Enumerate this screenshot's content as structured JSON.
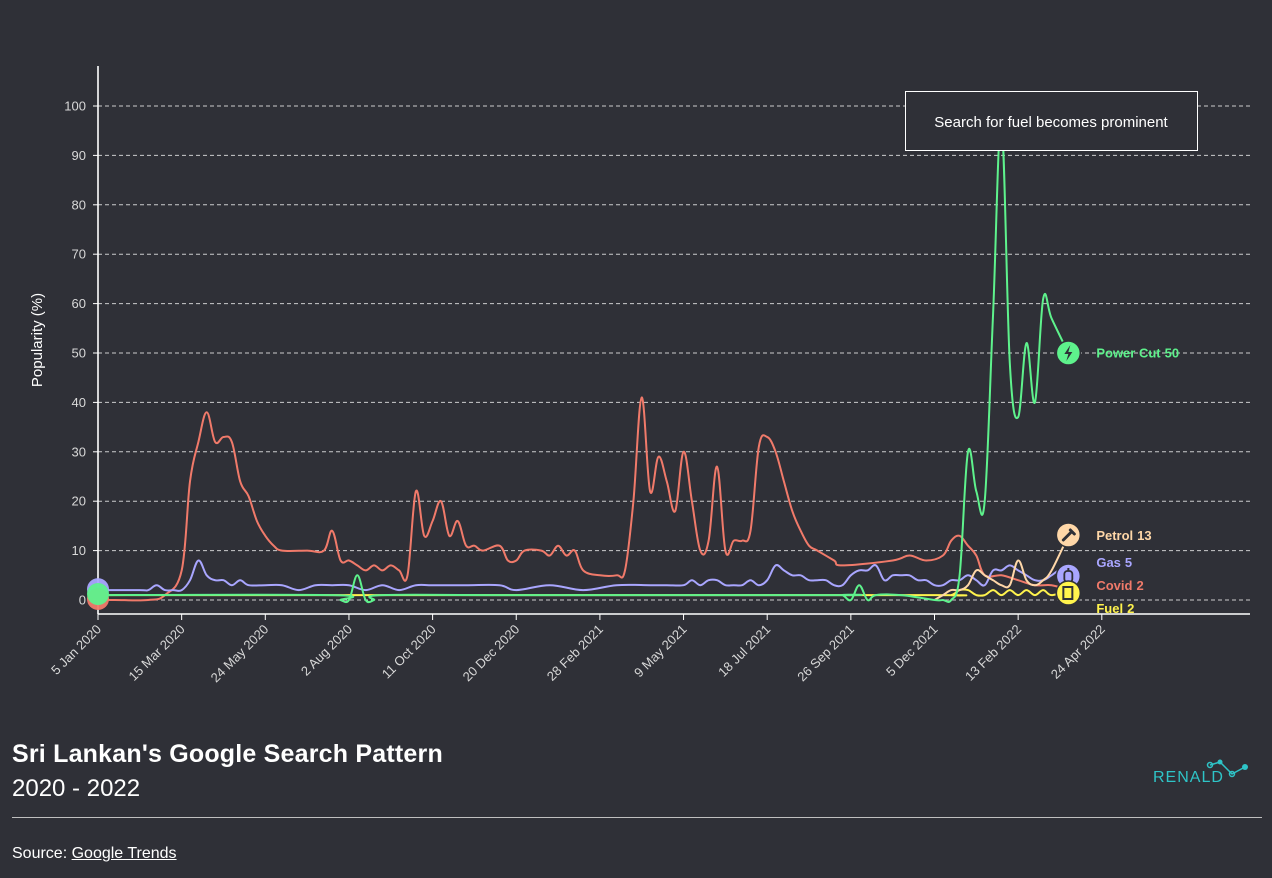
{
  "footer": {
    "title": "Sri Lankan's Google Search Pattern",
    "subtitle": "2020 - 2022",
    "source_prefix": "Source: ",
    "source_link": "Google Trends",
    "logo_text": "RENALD"
  },
  "colors": {
    "background": "#2f3037",
    "covid": "#f07a6a",
    "gas": "#a9a6ff",
    "power_cut": "#5ef28c",
    "petrol": "#ffd7a8",
    "fuel": "#fff34d",
    "logo": "#2ec4c7"
  },
  "chart_data": {
    "type": "line",
    "ylabel": "Popularity (%)",
    "xlabel": "",
    "ylim": [
      0,
      100
    ],
    "yticks": [
      0,
      10,
      20,
      30,
      40,
      50,
      60,
      70,
      80,
      90,
      100
    ],
    "grid": true,
    "x_tick_labels": [
      "5 Jan 2020",
      "15 Mar 2020",
      "24 May 2020",
      "2 Aug 2020",
      "11 Oct 2020",
      "20 Dec 2020",
      "28 Feb 2021",
      "9 May 2021",
      "18 Jul 2021",
      "26 Sep 2021",
      "5 Dec 2021",
      "13 Feb 2022",
      "24 Apr 2022"
    ],
    "annotation": "Search for fuel becomes prominent",
    "series": [
      {
        "name": "Covid",
        "end_value": 2,
        "icon": "virus-icon",
        "points": [
          [
            0,
            0
          ],
          [
            2,
            0
          ],
          [
            6,
            0
          ],
          [
            8,
            1
          ],
          [
            10,
            6
          ],
          [
            11,
            24
          ],
          [
            12,
            32
          ],
          [
            13,
            38
          ],
          [
            14,
            32
          ],
          [
            15,
            33
          ],
          [
            16,
            32
          ],
          [
            17,
            24
          ],
          [
            18,
            21
          ],
          [
            19,
            16
          ],
          [
            20,
            13
          ],
          [
            21,
            11
          ],
          [
            22,
            10
          ],
          [
            25,
            10
          ],
          [
            27,
            10
          ],
          [
            28,
            14
          ],
          [
            29,
            8
          ],
          [
            30,
            8
          ],
          [
            31,
            7
          ],
          [
            32,
            6
          ],
          [
            33,
            7
          ],
          [
            34,
            6
          ],
          [
            35,
            7
          ],
          [
            36,
            6
          ],
          [
            37,
            5
          ],
          [
            38,
            22
          ],
          [
            39,
            13
          ],
          [
            40,
            16
          ],
          [
            41,
            20
          ],
          [
            42,
            13
          ],
          [
            43,
            16
          ],
          [
            44,
            11
          ],
          [
            45,
            11
          ],
          [
            46,
            10
          ],
          [
            48,
            11
          ],
          [
            49,
            8
          ],
          [
            50,
            8
          ],
          [
            51,
            10
          ],
          [
            53,
            10
          ],
          [
            54,
            9
          ],
          [
            55,
            11
          ],
          [
            56,
            9
          ],
          [
            57,
            10
          ],
          [
            58,
            6
          ],
          [
            60,
            5
          ],
          [
            62,
            5
          ],
          [
            63,
            6
          ],
          [
            64,
            20
          ],
          [
            65,
            41
          ],
          [
            66,
            22
          ],
          [
            67,
            29
          ],
          [
            68,
            24
          ],
          [
            69,
            18
          ],
          [
            70,
            30
          ],
          [
            71,
            20
          ],
          [
            72,
            10
          ],
          [
            73,
            12
          ],
          [
            74,
            27
          ],
          [
            75,
            10
          ],
          [
            76,
            12
          ],
          [
            77,
            12
          ],
          [
            78,
            14
          ],
          [
            79,
            31
          ],
          [
            80,
            33
          ],
          [
            81,
            30
          ],
          [
            82,
            24
          ],
          [
            83,
            18
          ],
          [
            84,
            14
          ],
          [
            85,
            11
          ],
          [
            86,
            10
          ],
          [
            88,
            8
          ],
          [
            89,
            7
          ],
          [
            95,
            8
          ],
          [
            97,
            9
          ],
          [
            99,
            8
          ],
          [
            101,
            9
          ],
          [
            102,
            12
          ],
          [
            103,
            13
          ],
          [
            104,
            11
          ],
          [
            105,
            9
          ],
          [
            106,
            5
          ],
          [
            108,
            5
          ],
          [
            110,
            4
          ],
          [
            112,
            3
          ],
          [
            114,
            3
          ],
          [
            116,
            2
          ]
        ]
      },
      {
        "name": "Gas",
        "end_value": 5,
        "icon": "gas-cylinder-icon",
        "points": [
          [
            0,
            2
          ],
          [
            5,
            2
          ],
          [
            6,
            2
          ],
          [
            7,
            3
          ],
          [
            8,
            2
          ],
          [
            9,
            2
          ],
          [
            10,
            2
          ],
          [
            11,
            4
          ],
          [
            12,
            8
          ],
          [
            13,
            5
          ],
          [
            14,
            4
          ],
          [
            15,
            4
          ],
          [
            16,
            3
          ],
          [
            17,
            4
          ],
          [
            18,
            3
          ],
          [
            20,
            3
          ],
          [
            22,
            3
          ],
          [
            24,
            2
          ],
          [
            26,
            3
          ],
          [
            28,
            3
          ],
          [
            30,
            3
          ],
          [
            32,
            2
          ],
          [
            34,
            3
          ],
          [
            36,
            2
          ],
          [
            38,
            3
          ],
          [
            40,
            3
          ],
          [
            44,
            3
          ],
          [
            48,
            3
          ],
          [
            50,
            2
          ],
          [
            54,
            3
          ],
          [
            58,
            2
          ],
          [
            62,
            3
          ],
          [
            66,
            3
          ],
          [
            68,
            3
          ],
          [
            70,
            3
          ],
          [
            71,
            4
          ],
          [
            72,
            3
          ],
          [
            73,
            4
          ],
          [
            74,
            4
          ],
          [
            75,
            3
          ],
          [
            76,
            3
          ],
          [
            77,
            3
          ],
          [
            78,
            4
          ],
          [
            79,
            3
          ],
          [
            80,
            4
          ],
          [
            81,
            7
          ],
          [
            82,
            6
          ],
          [
            83,
            5
          ],
          [
            84,
            5
          ],
          [
            85,
            4
          ],
          [
            86,
            4
          ],
          [
            87,
            4
          ],
          [
            88,
            3
          ],
          [
            89,
            3
          ],
          [
            90,
            5
          ],
          [
            91,
            6
          ],
          [
            92,
            6
          ],
          [
            93,
            7
          ],
          [
            94,
            4
          ],
          [
            95,
            5
          ],
          [
            96,
            5
          ],
          [
            97,
            5
          ],
          [
            98,
            4
          ],
          [
            99,
            4
          ],
          [
            100,
            3
          ],
          [
            101,
            3
          ],
          [
            102,
            4
          ],
          [
            103,
            4
          ],
          [
            104,
            5
          ],
          [
            105,
            4
          ],
          [
            106,
            3
          ],
          [
            107,
            6
          ],
          [
            108,
            6
          ],
          [
            109,
            7
          ],
          [
            110,
            6
          ],
          [
            111,
            5
          ],
          [
            112,
            4
          ],
          [
            113,
            4
          ],
          [
            114,
            5
          ],
          [
            115,
            6
          ],
          [
            116,
            5
          ]
        ]
      },
      {
        "name": "Power Cut",
        "end_value": 50,
        "icon": "lightning-icon",
        "points": [
          [
            0,
            1
          ],
          [
            28,
            1
          ],
          [
            29,
            0
          ],
          [
            30,
            0
          ],
          [
            31,
            5
          ],
          [
            32,
            0
          ],
          [
            33,
            0
          ],
          [
            34,
            1
          ],
          [
            50,
            1
          ],
          [
            88,
            1
          ],
          [
            89,
            1
          ],
          [
            90,
            0
          ],
          [
            91,
            3
          ],
          [
            92,
            0
          ],
          [
            93,
            1
          ],
          [
            96,
            1
          ],
          [
            100,
            0
          ],
          [
            101,
            0
          ],
          [
            102,
            0
          ],
          [
            103,
            5
          ],
          [
            104,
            30
          ],
          [
            105,
            22
          ],
          [
            106,
            20
          ],
          [
            107,
            58
          ],
          [
            108,
            97
          ],
          [
            109,
            48
          ],
          [
            110,
            37
          ],
          [
            111,
            52
          ],
          [
            112,
            40
          ],
          [
            113,
            61
          ],
          [
            114,
            57
          ],
          [
            116,
            50
          ]
        ]
      },
      {
        "name": "Petrol",
        "end_value": 13,
        "icon": "petrol-pump-icon",
        "points": [
          [
            100,
            0
          ],
          [
            101,
            1
          ],
          [
            102,
            2
          ],
          [
            103,
            2
          ],
          [
            104,
            3
          ],
          [
            105,
            6
          ],
          [
            106,
            5
          ],
          [
            107,
            4
          ],
          [
            108,
            3
          ],
          [
            109,
            3
          ],
          [
            110,
            8
          ],
          [
            111,
            4
          ],
          [
            112,
            3
          ],
          [
            113,
            4
          ],
          [
            114,
            6
          ],
          [
            116,
            13
          ]
        ]
      },
      {
        "name": "Fuel",
        "end_value": 2,
        "icon": "fuel-canister-icon",
        "points": [
          [
            0,
            1
          ],
          [
            20,
            1
          ],
          [
            60,
            1
          ],
          [
            100,
            1
          ],
          [
            102,
            1
          ],
          [
            103,
            2
          ],
          [
            104,
            2
          ],
          [
            105,
            1
          ],
          [
            106,
            1
          ],
          [
            107,
            2
          ],
          [
            108,
            1
          ],
          [
            109,
            2
          ],
          [
            110,
            1
          ],
          [
            111,
            2
          ],
          [
            112,
            1
          ],
          [
            113,
            2
          ],
          [
            114,
            1
          ],
          [
            116,
            2
          ]
        ]
      }
    ]
  }
}
